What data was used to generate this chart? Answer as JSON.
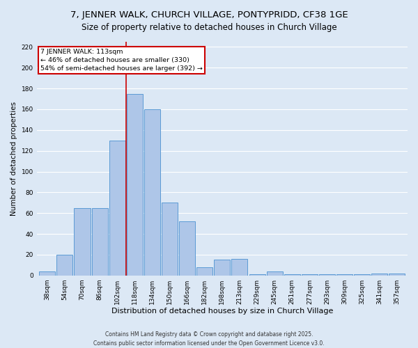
{
  "title": "7, JENNER WALK, CHURCH VILLAGE, PONTYPRIDD, CF38 1GE",
  "subtitle": "Size of property relative to detached houses in Church Village",
  "xlabel": "Distribution of detached houses by size in Church Village",
  "ylabel": "Number of detached properties",
  "bar_labels": [
    "38sqm",
    "54sqm",
    "70sqm",
    "86sqm",
    "102sqm",
    "118sqm",
    "134sqm",
    "150sqm",
    "166sqm",
    "182sqm",
    "198sqm",
    "213sqm",
    "229sqm",
    "245sqm",
    "261sqm",
    "277sqm",
    "293sqm",
    "309sqm",
    "325sqm",
    "341sqm",
    "357sqm"
  ],
  "bar_values": [
    4,
    20,
    65,
    65,
    130,
    175,
    160,
    70,
    52,
    8,
    15,
    16,
    1,
    4,
    1,
    1,
    1,
    1,
    1,
    2,
    2
  ],
  "bar_color": "#aec6e8",
  "bar_edge_color": "#5b9bd5",
  "vline_x_index": 4.5,
  "vline_color": "#cc0000",
  "ylim": [
    0,
    225
  ],
  "yticks": [
    0,
    20,
    40,
    60,
    80,
    100,
    120,
    140,
    160,
    180,
    200,
    220
  ],
  "annotation_title": "7 JENNER WALK: 113sqm",
  "annotation_line1": "← 46% of detached houses are smaller (330)",
  "annotation_line2": "54% of semi-detached houses are larger (392) →",
  "annotation_box_color": "#ffffff",
  "annotation_box_edge": "#cc0000",
  "background_color": "#dce8f5",
  "footer1": "Contains HM Land Registry data © Crown copyright and database right 2025.",
  "footer2": "Contains public sector information licensed under the Open Government Licence v3.0.",
  "grid_color": "#ffffff",
  "title_fontsize": 9.5,
  "subtitle_fontsize": 8.5,
  "axis_label_fontsize": 7.5,
  "tick_fontsize": 6.5,
  "footer_fontsize": 5.5
}
